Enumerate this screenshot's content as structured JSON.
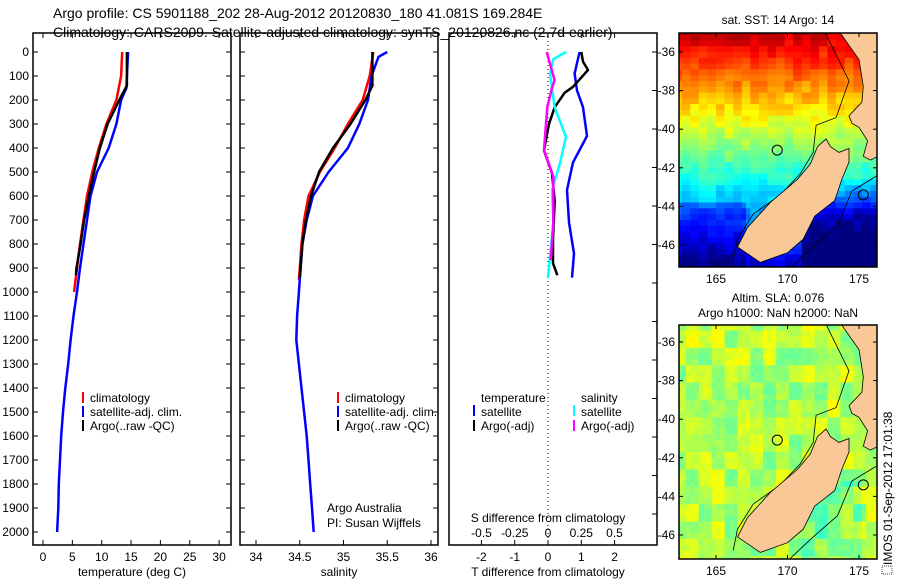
{
  "header": {
    "line1": "Argo profile: CS 5901188_202 28-Aug-2012 20120830_180 41.081S 169.284E",
    "line2": "Climatology: CARS2009. Satellite-adjusted climatology: synTS_20120826.nc (2.7d earlier)"
  },
  "colors": {
    "climatology": "#ff0000",
    "satellite": "#0000ff",
    "argo": "#000000",
    "sal_satellite": "#00ffff",
    "sal_argo": "#ff00ff",
    "land": "#f9c896"
  },
  "chart_data": [
    {
      "type": "line",
      "name": "temperature-profile",
      "xlabel": "temperature (deg C)",
      "ylabel": "",
      "xlim": [
        -1.7,
        32
      ],
      "ylim": [
        2060,
        0
      ],
      "xticks": [
        0,
        5,
        10,
        15,
        20,
        25,
        30
      ],
      "yticks": [
        0,
        100,
        200,
        300,
        400,
        500,
        600,
        700,
        800,
        900,
        1000,
        1100,
        1200,
        1300,
        1400,
        1500,
        1600,
        1700,
        1800,
        1900,
        2000
      ],
      "legend": [
        "climatology",
        "satellite-adj. clim.",
        "Argo(..raw -QC)"
      ],
      "series": [
        {
          "name": "climatology",
          "depth": [
            0,
            100,
            200,
            300,
            400,
            500,
            600,
            700,
            800,
            900,
            1000
          ],
          "values": [
            13.5,
            13.3,
            12.5,
            10.8,
            9.5,
            8.4,
            7.5,
            6.9,
            6.3,
            5.8,
            5.3
          ]
        },
        {
          "name": "satellite-adj. clim.",
          "depth": [
            0,
            100,
            150,
            200,
            300,
            400,
            500,
            600,
            700,
            800,
            900,
            1000,
            1100,
            1200,
            1300,
            1400,
            1500,
            1600,
            1700,
            1800,
            1900,
            2000
          ],
          "values": [
            14.5,
            14.3,
            14.2,
            13.3,
            12.5,
            11.2,
            9.2,
            8.1,
            7.5,
            6.9,
            6.3,
            5.8,
            5.2,
            4.7,
            4.3,
            3.8,
            3.4,
            3.1,
            2.9,
            2.7,
            2.6,
            2.4
          ]
        },
        {
          "name": "Argo(..raw -QC)",
          "depth": [
            0,
            140,
            200,
            300,
            400,
            500,
            600,
            700,
            800,
            900,
            930
          ],
          "values": [
            14.3,
            14.3,
            13.0,
            11.0,
            9.7,
            8.7,
            7.8,
            7.0,
            6.4,
            5.7,
            5.6
          ]
        }
      ]
    },
    {
      "type": "line",
      "name": "salinity-profile",
      "xlabel": "salinity",
      "xlim": [
        33.82,
        36.1
      ],
      "ylim": [
        2060,
        0
      ],
      "xticks": [
        34,
        34.5,
        35,
        35.5,
        36
      ],
      "legend": [
        "climatology",
        "satellite-adj. clim.",
        "Argo(..raw -QC)"
      ],
      "annotation": [
        "Argo Australia",
        "PI: Susan Wijffels"
      ],
      "series": [
        {
          "name": "climatology",
          "depth": [
            0,
            100,
            200,
            300,
            400,
            500,
            600,
            700,
            800,
            900,
            950
          ],
          "values": [
            35.34,
            35.3,
            35.22,
            35.05,
            34.9,
            34.73,
            34.6,
            34.55,
            34.52,
            34.5,
            34.49
          ]
        },
        {
          "name": "satellite-adj. clim.",
          "depth": [
            0,
            20,
            100,
            200,
            300,
            400,
            500,
            600,
            700,
            800,
            900,
            1000,
            1100,
            1200,
            1300,
            1400,
            1500,
            1600,
            1700,
            1800,
            1900,
            2000
          ],
          "values": [
            35.5,
            35.4,
            35.32,
            35.28,
            35.18,
            35.05,
            34.83,
            34.65,
            34.58,
            34.53,
            34.51,
            34.49,
            34.47,
            34.46,
            34.49,
            34.52,
            34.55,
            34.58,
            34.6,
            34.62,
            34.64,
            34.66
          ]
        },
        {
          "name": "Argo(..raw -QC)",
          "depth": [
            0,
            140,
            200,
            300,
            400,
            500,
            600,
            700,
            800,
            900,
            940
          ],
          "values": [
            35.33,
            35.33,
            35.25,
            35.08,
            34.88,
            34.72,
            34.63,
            34.57,
            34.53,
            34.51,
            34.5
          ]
        }
      ]
    },
    {
      "type": "line",
      "name": "difference-profile",
      "xlabel": "T difference from climatology",
      "x2label": "S difference from climatology",
      "xlim": [
        -3,
        3.2
      ],
      "x2lim": [
        -0.75,
        0.8
      ],
      "xticks": [
        -2,
        -1,
        0,
        1,
        2
      ],
      "x2ticks": [
        "-0.5",
        "-0.25",
        "0",
        "0.25",
        "0.5"
      ],
      "x2tick_values": [
        -0.5,
        -0.25,
        0,
        0.25,
        0.5
      ],
      "ylim": [
        2060,
        0
      ],
      "legend_temperature": {
        "title": "temperature",
        "items": [
          "satellite",
          "Argo(-adj)"
        ]
      },
      "legend_salinity": {
        "title": "salinity",
        "items": [
          "satellite",
          "Argo(-adj)"
        ]
      },
      "series": [
        {
          "name": "T satellite",
          "axis": "T",
          "depth": [
            0,
            90,
            160,
            230,
            350,
            460,
            575,
            710,
            840,
            940
          ],
          "values": [
            0.95,
            0.8,
            0.87,
            1.05,
            1.17,
            0.75,
            0.57,
            0.63,
            0.78,
            0.72
          ]
        },
        {
          "name": "T Argo(-adj)",
          "axis": "T",
          "depth": [
            0,
            40,
            75,
            145,
            170,
            230,
            300,
            410,
            505,
            620,
            780,
            880,
            930
          ],
          "values": [
            1.0,
            1.05,
            1.2,
            0.75,
            0.5,
            0.2,
            0.03,
            -0.12,
            0.12,
            0.2,
            0.15,
            0.15,
            0.28
          ]
        },
        {
          "name": "S satellite",
          "axis": "S",
          "depth": [
            0,
            30,
            90,
            229,
            354,
            463,
            575,
            713,
            942
          ],
          "values": [
            0.135,
            0.04,
            0.015,
            0.05,
            0.135,
            0.09,
            0.03,
            0.04,
            0.0
          ]
        },
        {
          "name": "S Argo(-adj)",
          "axis": "S",
          "depth": [
            0,
            117,
            150,
            229,
            408,
            520,
            713,
            867
          ],
          "values": [
            -0.01,
            0.05,
            0.03,
            -0.005,
            -0.03,
            0.04,
            0.04,
            0.02
          ]
        }
      ]
    }
  ],
  "maps": [
    {
      "title": "sat. SST: 14 Argo: 14",
      "kind": "sst",
      "lon_ticks": [
        165,
        170,
        175
      ],
      "lat_ticks": [
        "-36",
        "-38",
        "-40",
        "-42",
        "-44",
        "-46"
      ],
      "lat_values": [
        -36,
        -38,
        -40,
        -42,
        -44,
        -46
      ],
      "argo_position": [
        169.284,
        -41.081
      ]
    },
    {
      "title1": "Altim. SLA: 0.076",
      "title2": "Argo h1000: NaN h2000: NaN",
      "kind": "sla",
      "lon_ticks": [
        165,
        170,
        175
      ],
      "lat_ticks": [
        "-36",
        "-38",
        "-40",
        "-42",
        "-44",
        "-46"
      ],
      "lat_values": [
        -36,
        -38,
        -40,
        -42,
        -44,
        -46
      ],
      "argo_position": [
        169.284,
        -41.081
      ]
    }
  ],
  "footer_stamp": "IMOS 01-Sep-2012 17:01:38"
}
